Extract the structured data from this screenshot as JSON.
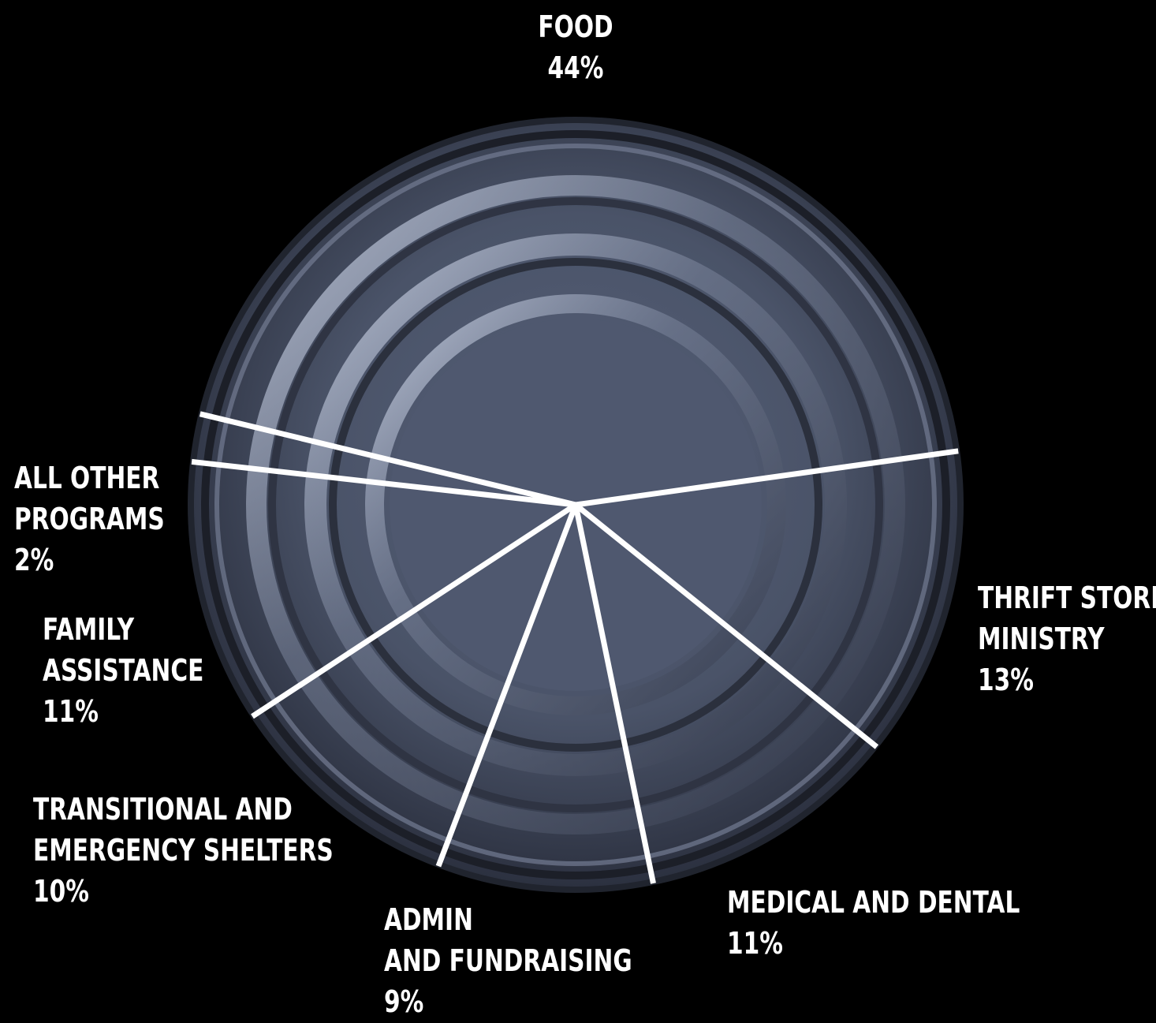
{
  "chart_data": {
    "type": "pie",
    "title": "",
    "slices": [
      {
        "label_lines": [
          "FOOD"
        ],
        "value": 44,
        "value_text": "44%"
      },
      {
        "label_lines": [
          "THRIFT STORE",
          "MINISTRY"
        ],
        "value": 13,
        "value_text": "13%"
      },
      {
        "label_lines": [
          "MEDICAL AND DENTAL"
        ],
        "value": 11,
        "value_text": "11%"
      },
      {
        "label_lines": [
          "ADMIN",
          "AND FUNDRAISING"
        ],
        "value": 9,
        "value_text": "9%"
      },
      {
        "label_lines": [
          "TRANSITIONAL AND",
          "EMERGENCY SHELTERS"
        ],
        "value": 10,
        "value_text": "10%"
      },
      {
        "label_lines": [
          "FAMILY",
          "ASSISTANCE"
        ],
        "value": 11,
        "value_text": "11%"
      },
      {
        "label_lines": [
          "ALL OTHER",
          "PROGRAMS"
        ],
        "value": 2,
        "value_text": "2%"
      }
    ],
    "background_image": "tin-can-lid",
    "divider_color": "#ffffff",
    "label_color": "#ffffff",
    "background_color": "#000000"
  }
}
